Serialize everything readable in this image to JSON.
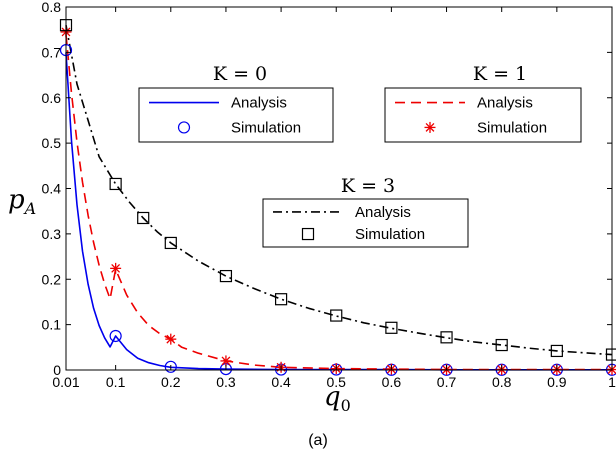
{
  "chart_data": {
    "type": "line",
    "xlabel": "q",
    "xlabel_sub": "0",
    "ylabel": "p",
    "ylabel_sub": "A",
    "caption": "(a)",
    "xlim": [
      0.01,
      1
    ],
    "ylim": [
      0,
      0.8
    ],
    "x_ticks": [
      0.01,
      0.1,
      0.2,
      0.3,
      0.4,
      0.5,
      0.6,
      0.7,
      0.8,
      0.9,
      1
    ],
    "x_tick_labels": [
      "0.01",
      "0.1",
      "0.2",
      "0.3",
      "0.4",
      "0.5",
      "0.6",
      "0.7",
      "0.8",
      "0.9",
      "1"
    ],
    "y_ticks": [
      0,
      0.1,
      0.2,
      0.3,
      0.4,
      0.5,
      0.6,
      0.7,
      0.8
    ],
    "y_tick_labels": [
      "0",
      "0.1",
      "0.2",
      "0.3",
      "0.4",
      "0.5",
      "0.6",
      "0.7",
      "0.8"
    ],
    "grid": false,
    "groups": [
      {
        "title": "K = 0",
        "color": "#0000ee",
        "line_style": "solid",
        "marker": "circle",
        "analysis_label": "Analysis",
        "simulation_label": "Simulation",
        "analysis": {
          "x": [
            0.01,
            0.02,
            0.03,
            0.04,
            0.05,
            0.06,
            0.07,
            0.08,
            0.09,
            0.1,
            0.12,
            0.14,
            0.16,
            0.18,
            0.2,
            0.25,
            0.3,
            0.4,
            0.5,
            0.6,
            0.7,
            0.8,
            0.9,
            1
          ],
          "y": [
            0.7,
            0.505,
            0.364,
            0.262,
            0.189,
            0.136,
            0.098,
            0.071,
            0.051,
            0.075,
            0.045,
            0.026,
            0.016,
            0.01,
            0.006,
            0.003,
            0.002,
            0.001,
            0.001,
            0.001,
            0.0005,
            0.0005,
            0.0005,
            0.0005
          ]
        },
        "simulation": {
          "x": [
            0.01,
            0.1,
            0.2,
            0.3,
            0.4,
            0.5,
            0.6,
            0.7,
            0.8,
            0.9,
            1
          ],
          "y": [
            0.705,
            0.075,
            0.007,
            0.002,
            0.001,
            0.001,
            0.0005,
            0.0005,
            0.0005,
            0.0005,
            0.0005
          ]
        }
      },
      {
        "title": "K = 1",
        "color": "#ee0000",
        "line_style": "dashed",
        "marker": "asterisk",
        "analysis_label": "Analysis",
        "simulation_label": "Simulation",
        "analysis": {
          "x": [
            0.01,
            0.02,
            0.03,
            0.04,
            0.05,
            0.06,
            0.07,
            0.08,
            0.09,
            0.1,
            0.12,
            0.14,
            0.16,
            0.18,
            0.2,
            0.22,
            0.25,
            0.3,
            0.35,
            0.4,
            0.5,
            0.6,
            0.7,
            0.8,
            0.9,
            1
          ],
          "y": [
            0.74,
            0.61,
            0.502,
            0.414,
            0.341,
            0.281,
            0.231,
            0.19,
            0.157,
            0.222,
            0.165,
            0.126,
            0.098,
            0.08,
            0.068,
            0.05,
            0.037,
            0.02,
            0.011,
            0.006,
            0.003,
            0.002,
            0.001,
            0.001,
            0.001,
            0.001
          ]
        },
        "simulation": {
          "x": [
            0.01,
            0.1,
            0.2,
            0.3,
            0.4,
            0.5,
            0.6,
            0.7,
            0.8,
            0.9,
            1
          ],
          "y": [
            0.745,
            0.224,
            0.068,
            0.02,
            0.006,
            0.003,
            0.002,
            0.001,
            0.001,
            0.001,
            0.001
          ]
        }
      },
      {
        "title": "K = 3",
        "color": "#000000",
        "line_style": "dashdot",
        "marker": "square",
        "analysis_label": "Analysis",
        "simulation_label": "Simulation",
        "analysis": {
          "x": [
            0.01,
            0.03,
            0.05,
            0.07,
            0.1,
            0.125,
            0.15,
            0.175,
            0.2,
            0.25,
            0.3,
            0.35,
            0.4,
            0.45,
            0.5,
            0.55,
            0.6,
            0.65,
            0.7,
            0.75,
            0.8,
            0.85,
            0.9,
            0.95,
            1
          ],
          "y": [
            0.76,
            0.63,
            0.55,
            0.47,
            0.41,
            0.37,
            0.335,
            0.305,
            0.28,
            0.24,
            0.207,
            0.18,
            0.156,
            0.136,
            0.119,
            0.104,
            0.092,
            0.081,
            0.071,
            0.062,
            0.055,
            0.048,
            0.042,
            0.038,
            0.034
          ]
        },
        "simulation": {
          "x": [
            0.01,
            0.1,
            0.15,
            0.2,
            0.3,
            0.4,
            0.5,
            0.6,
            0.7,
            0.8,
            0.9,
            1
          ],
          "y": [
            0.76,
            0.41,
            0.335,
            0.28,
            0.207,
            0.156,
            0.12,
            0.093,
            0.072,
            0.055,
            0.042,
            0.034
          ]
        }
      }
    ]
  }
}
